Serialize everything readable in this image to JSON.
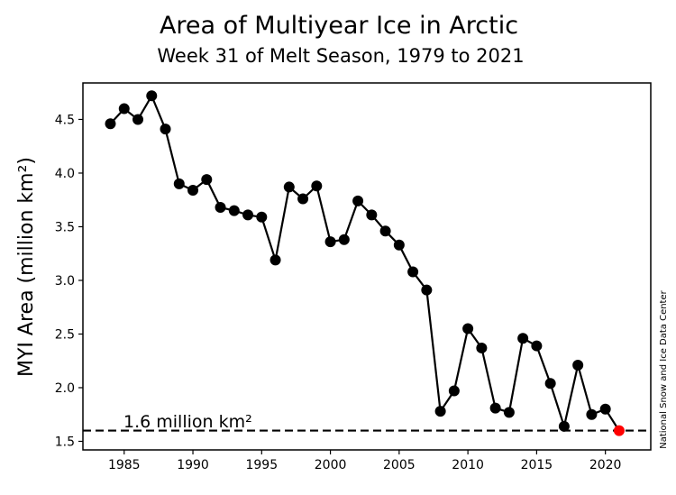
{
  "chart_data": {
    "type": "line",
    "title": "Area of Multiyear Ice in Arctic",
    "subtitle": "Week 31 of Melt Season, 1979 to 2021",
    "xlabel": "",
    "ylabel": "MYI Area (million km²)",
    "xlim": [
      1982,
      2023.3
    ],
    "ylim": [
      1.42,
      4.84
    ],
    "xticks": [
      1985,
      1990,
      1995,
      2000,
      2005,
      2010,
      2015,
      2020
    ],
    "yticks": [
      "1.5",
      "2.0",
      "2.5",
      "3.0",
      "3.5",
      "4.0",
      "4.5"
    ],
    "grid": false,
    "x": [
      1984,
      1985,
      1986,
      1987,
      1988,
      1989,
      1990,
      1991,
      1992,
      1993,
      1994,
      1995,
      1996,
      1997,
      1998,
      1999,
      2000,
      2001,
      2002,
      2003,
      2004,
      2005,
      2006,
      2007,
      2008,
      2009,
      2010,
      2011,
      2012,
      2013,
      2014,
      2015,
      2016,
      2017,
      2018,
      2019,
      2020,
      2021
    ],
    "values": [
      4.46,
      4.6,
      4.5,
      4.72,
      4.41,
      3.9,
      3.84,
      3.94,
      3.68,
      3.65,
      3.61,
      3.59,
      3.19,
      3.87,
      3.76,
      3.88,
      3.36,
      3.38,
      3.74,
      3.61,
      3.46,
      3.33,
      3.08,
      2.91,
      1.78,
      1.97,
      2.55,
      2.37,
      1.81,
      1.77,
      2.46,
      2.39,
      2.04,
      1.64,
      2.21,
      1.75,
      1.8,
      1.6
    ],
    "line_color": "#000000",
    "highlight": {
      "x": 2021,
      "value": 1.6,
      "color": "#ff0000"
    },
    "reference_line": {
      "value": 1.6,
      "label": "1.6 million km²",
      "style": "dashed"
    },
    "credit": "National Snow and Ice Data Center"
  }
}
